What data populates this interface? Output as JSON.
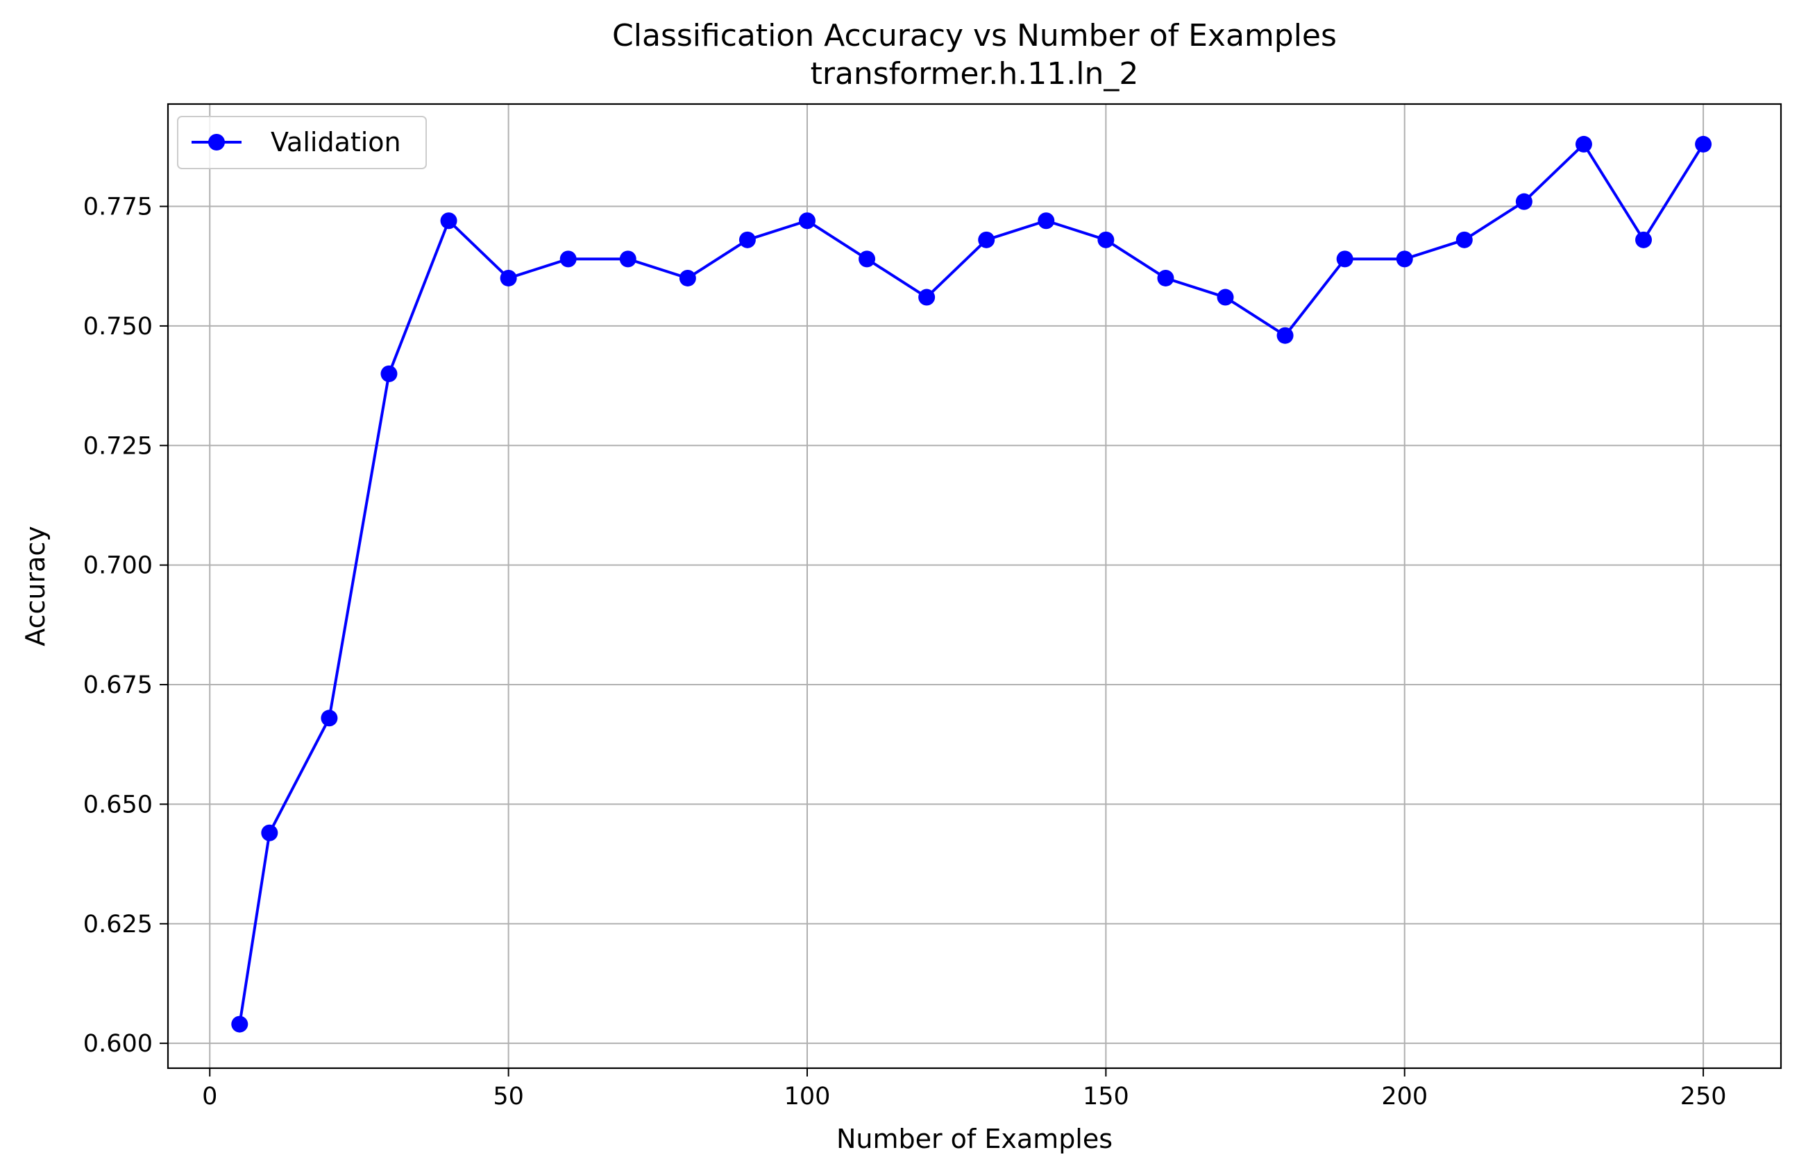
{
  "chart_data": {
    "type": "line",
    "title": "Classification Accuracy vs Number of Examples",
    "subtitle": "transformer.h.11.ln_2",
    "xlabel": "Number of Examples",
    "ylabel": "Accuracy",
    "xlim": [
      -7,
      263
    ],
    "ylim": [
      0.5948,
      0.7964
    ],
    "xticks": [
      0,
      50,
      100,
      150,
      200,
      250
    ],
    "xtick_labels": [
      "0",
      "50",
      "100",
      "150",
      "200",
      "250"
    ],
    "yticks": [
      0.6,
      0.625,
      0.65,
      0.675,
      0.7,
      0.725,
      0.75,
      0.775
    ],
    "ytick_labels": [
      "0.600",
      "0.625",
      "0.650",
      "0.675",
      "0.700",
      "0.725",
      "0.750",
      "0.775"
    ],
    "grid": true,
    "legend_position": "upper-left",
    "series": [
      {
        "name": "Validation",
        "color": "#0000ff",
        "marker": "circle",
        "x": [
          5,
          10,
          20,
          30,
          40,
          50,
          60,
          70,
          80,
          90,
          100,
          110,
          120,
          130,
          140,
          150,
          160,
          170,
          180,
          190,
          200,
          210,
          220,
          230,
          240,
          250
        ],
        "y": [
          0.604,
          0.644,
          0.668,
          0.74,
          0.772,
          0.76,
          0.764,
          0.764,
          0.76,
          0.768,
          0.772,
          0.764,
          0.756,
          0.768,
          0.772,
          0.768,
          0.76,
          0.756,
          0.748,
          0.764,
          0.764,
          0.768,
          0.776,
          0.788,
          0.768,
          0.788
        ]
      }
    ]
  }
}
